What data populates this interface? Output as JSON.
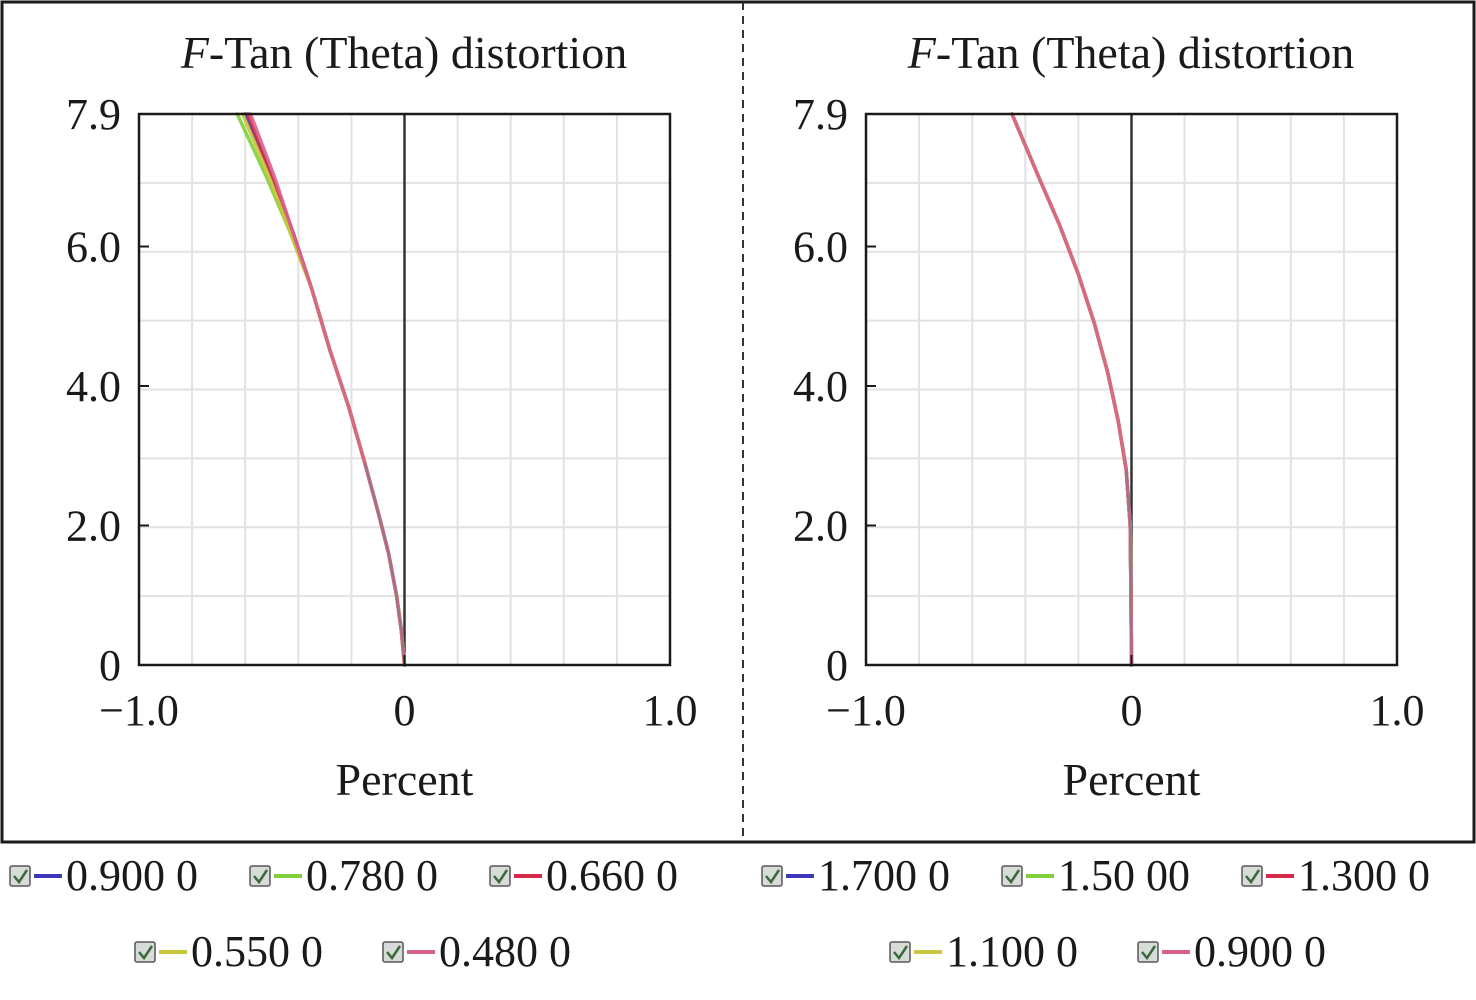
{
  "figure": {
    "panel_frame_color": "#1a1a1a",
    "divider_color": "#333333"
  },
  "chart_data": [
    {
      "type": "line",
      "title_prefix": "F",
      "title_rest": "-Tan (Theta) distortion",
      "xlabel": "Percent",
      "ylabel": "",
      "xlim": [
        -1.0,
        1.0
      ],
      "ylim": [
        0,
        7.9
      ],
      "x_ticks": [
        -1.0,
        0,
        1.0
      ],
      "x_tick_labels": [
        "−1.0",
        "0",
        "1.0"
      ],
      "y_ticks": [
        0,
        2.0,
        4.0,
        6.0,
        7.9
      ],
      "y_tick_labels": [
        "0",
        "2.0",
        "4.0",
        "6.0",
        "7.9"
      ],
      "grid": true,
      "legend_position": "bottom",
      "series": [
        {
          "name": "0.900 0",
          "color": "#3a3ab8",
          "points": [
            [
              0,
              0
            ],
            [
              -0.012,
              0.5
            ],
            [
              -0.03,
              1.0
            ],
            [
              -0.06,
              1.6
            ],
            [
              -0.1,
              2.2
            ],
            [
              -0.15,
              2.9
            ],
            [
              -0.21,
              3.7
            ],
            [
              -0.28,
              4.5
            ],
            [
              -0.35,
              5.4
            ],
            [
              -0.42,
              6.2
            ],
            [
              -0.5,
              7.0
            ],
            [
              -0.6,
              7.9
            ]
          ]
        },
        {
          "name": "0.780 0",
          "color": "#7ecf3a",
          "points": [
            [
              0,
              0
            ],
            [
              -0.012,
              0.5
            ],
            [
              -0.03,
              1.0
            ],
            [
              -0.06,
              1.6
            ],
            [
              -0.1,
              2.2
            ],
            [
              -0.15,
              2.9
            ],
            [
              -0.21,
              3.7
            ],
            [
              -0.28,
              4.5
            ],
            [
              -0.35,
              5.4
            ],
            [
              -0.43,
              6.2
            ],
            [
              -0.52,
              7.0
            ],
            [
              -0.63,
              7.9
            ]
          ]
        },
        {
          "name": "0.660 0",
          "color": "#d8284a",
          "points": [
            [
              0,
              0
            ],
            [
              -0.012,
              0.5
            ],
            [
              -0.03,
              1.0
            ],
            [
              -0.06,
              1.6
            ],
            [
              -0.1,
              2.2
            ],
            [
              -0.15,
              2.9
            ],
            [
              -0.21,
              3.7
            ],
            [
              -0.28,
              4.5
            ],
            [
              -0.35,
              5.4
            ],
            [
              -0.42,
              6.2
            ],
            [
              -0.5,
              7.0
            ],
            [
              -0.59,
              7.9
            ]
          ]
        },
        {
          "name": "0.550 0",
          "color": "#c8c83a",
          "points": [
            [
              0,
              0
            ],
            [
              -0.012,
              0.5
            ],
            [
              -0.03,
              1.0
            ],
            [
              -0.06,
              1.6
            ],
            [
              -0.1,
              2.2
            ],
            [
              -0.15,
              2.9
            ],
            [
              -0.21,
              3.7
            ],
            [
              -0.28,
              4.5
            ],
            [
              -0.35,
              5.4
            ],
            [
              -0.43,
              6.2
            ],
            [
              -0.51,
              7.0
            ],
            [
              -0.61,
              7.9
            ]
          ]
        },
        {
          "name": "0.480 0",
          "color": "#d8608a",
          "points": [
            [
              0,
              0
            ],
            [
              -0.012,
              0.5
            ],
            [
              -0.03,
              1.0
            ],
            [
              -0.06,
              1.6
            ],
            [
              -0.1,
              2.2
            ],
            [
              -0.15,
              2.9
            ],
            [
              -0.21,
              3.7
            ],
            [
              -0.28,
              4.5
            ],
            [
              -0.35,
              5.4
            ],
            [
              -0.42,
              6.2
            ],
            [
              -0.49,
              7.0
            ],
            [
              -0.58,
              7.9
            ]
          ]
        }
      ]
    },
    {
      "type": "line",
      "title_prefix": "F",
      "title_rest": "-Tan (Theta) distortion",
      "xlabel": "Percent",
      "ylabel": "",
      "xlim": [
        -1.0,
        1.0
      ],
      "ylim": [
        0,
        7.9
      ],
      "x_ticks": [
        -1.0,
        0,
        1.0
      ],
      "x_tick_labels": [
        "−1.0",
        "0",
        "1.0"
      ],
      "y_ticks": [
        0,
        2.0,
        4.0,
        6.0,
        7.9
      ],
      "y_tick_labels": [
        "0",
        "2.0",
        "4.0",
        "6.0",
        "7.9"
      ],
      "grid": true,
      "legend_position": "bottom",
      "series": [
        {
          "name": "1.700 0",
          "color": "#3a3ab8",
          "points": [
            [
              0,
              0
            ],
            [
              -0.002,
              1.0
            ],
            [
              -0.005,
              2.0
            ],
            [
              -0.02,
              2.8
            ],
            [
              -0.05,
              3.5
            ],
            [
              -0.09,
              4.2
            ],
            [
              -0.14,
              4.9
            ],
            [
              -0.2,
              5.6
            ],
            [
              -0.27,
              6.3
            ],
            [
              -0.35,
              7.0
            ],
            [
              -0.45,
              7.9
            ]
          ]
        },
        {
          "name": "1.50 00",
          "color": "#7ecf3a",
          "points": [
            [
              0,
              0
            ],
            [
              -0.002,
              1.0
            ],
            [
              -0.005,
              2.0
            ],
            [
              -0.02,
              2.8
            ],
            [
              -0.05,
              3.5
            ],
            [
              -0.09,
              4.2
            ],
            [
              -0.14,
              4.9
            ],
            [
              -0.2,
              5.6
            ],
            [
              -0.27,
              6.3
            ],
            [
              -0.35,
              7.0
            ],
            [
              -0.45,
              7.9
            ]
          ]
        },
        {
          "name": "1.300 0",
          "color": "#d8284a",
          "points": [
            [
              0,
              0
            ],
            [
              -0.002,
              1.0
            ],
            [
              -0.005,
              2.0
            ],
            [
              -0.02,
              2.8
            ],
            [
              -0.05,
              3.5
            ],
            [
              -0.09,
              4.2
            ],
            [
              -0.14,
              4.9
            ],
            [
              -0.2,
              5.6
            ],
            [
              -0.27,
              6.3
            ],
            [
              -0.35,
              7.0
            ],
            [
              -0.45,
              7.9
            ]
          ]
        },
        {
          "name": "1.100 0",
          "color": "#c8c83a",
          "points": [
            [
              0,
              0
            ],
            [
              -0.002,
              1.0
            ],
            [
              -0.005,
              2.0
            ],
            [
              -0.02,
              2.8
            ],
            [
              -0.05,
              3.5
            ],
            [
              -0.09,
              4.2
            ],
            [
              -0.14,
              4.9
            ],
            [
              -0.2,
              5.6
            ],
            [
              -0.27,
              6.3
            ],
            [
              -0.35,
              7.0
            ],
            [
              -0.45,
              7.9
            ]
          ]
        },
        {
          "name": "0.900 0",
          "color": "#d8608a",
          "points": [
            [
              0,
              0
            ],
            [
              -0.002,
              1.0
            ],
            [
              -0.005,
              2.0
            ],
            [
              -0.02,
              2.8
            ],
            [
              -0.05,
              3.5
            ],
            [
              -0.09,
              4.2
            ],
            [
              -0.14,
              4.9
            ],
            [
              -0.2,
              5.6
            ],
            [
              -0.27,
              6.3
            ],
            [
              -0.35,
              7.0
            ],
            [
              -0.45,
              7.9
            ]
          ]
        }
      ]
    }
  ]
}
